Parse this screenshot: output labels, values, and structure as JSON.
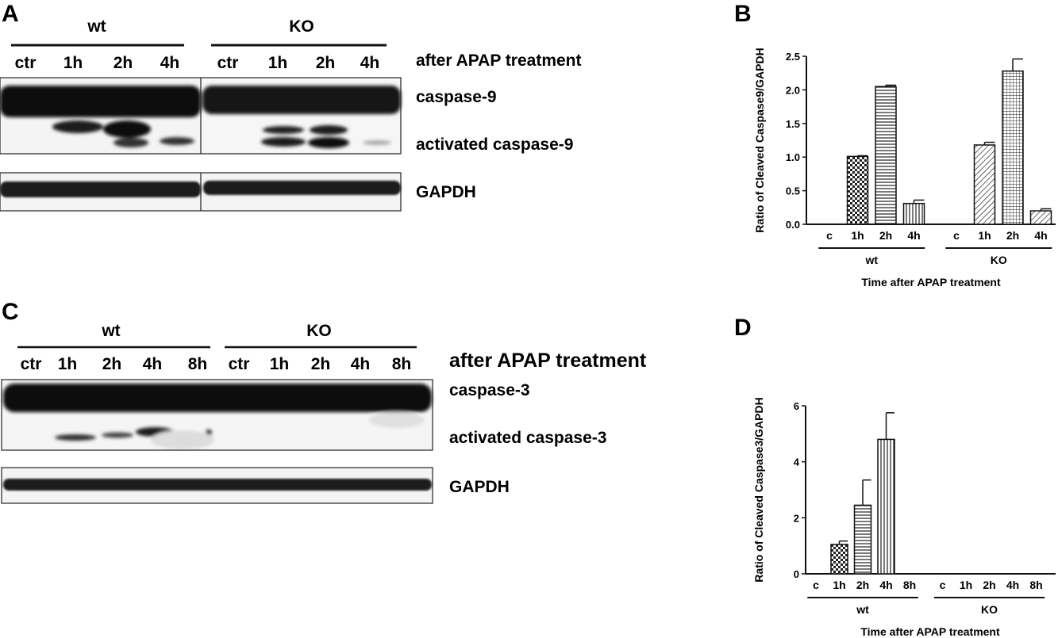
{
  "panel_a": {
    "letter": "A",
    "groups": [
      "wt",
      "KO"
    ],
    "lanes": [
      "ctr",
      "1h",
      "2h",
      "4h",
      "ctr",
      "1h",
      "2h",
      "4h"
    ],
    "treatment_label": "after APAP treatment",
    "band_labels": [
      "caspase-9",
      "activated caspase-9",
      "GAPDH"
    ]
  },
  "panel_c": {
    "letter": "C",
    "groups": [
      "wt",
      "KO"
    ],
    "lanes": [
      "ctr",
      "1h",
      "2h",
      "4h",
      "8h",
      "ctr",
      "1h",
      "2h",
      "4h",
      "8h"
    ],
    "treatment_label": "after APAP treatment",
    "band_labels": [
      "caspase-3",
      "activated caspase-3",
      "GAPDH"
    ]
  },
  "chart_data": [
    {
      "panel": "B",
      "type": "bar",
      "ylabel": "Ratio of Cleaved Caspase9/GAPDH",
      "xlabel": "Time after APAP treatment",
      "categories": [
        "c",
        "1h",
        "2h",
        "4h",
        "c",
        "1h",
        "2h",
        "4h"
      ],
      "groups": [
        {
          "name": "wt",
          "span": [
            0,
            3
          ]
        },
        {
          "name": "KO",
          "span": [
            4,
            7
          ]
        }
      ],
      "values": [
        0,
        1.01,
        2.05,
        0.31,
        0,
        1.18,
        2.28,
        0.2
      ],
      "errors": [
        0,
        0.01,
        0.02,
        0.05,
        0,
        0.04,
        0.18,
        0.03
      ],
      "patterns": [
        "none",
        "check",
        "hlines",
        "vlines",
        "none",
        "diag",
        "grid",
        "diag"
      ],
      "ylim": [
        0,
        2.5
      ],
      "yticks": [
        0.0,
        0.5,
        1.0,
        1.5,
        2.0,
        2.5
      ],
      "ytick_labels": [
        "0.0",
        "0.5",
        "1.0",
        "1.5",
        "2.0",
        "2.5"
      ]
    },
    {
      "panel": "D",
      "type": "bar",
      "ylabel": "Ratio of Cleaved Caspase3/GAPDH",
      "xlabel": "Time after APAP treatment",
      "categories": [
        "c",
        "1h",
        "2h",
        "4h",
        "8h",
        "c",
        "1h",
        "2h",
        "4h",
        "8h"
      ],
      "groups": [
        {
          "name": "wt",
          "span": [
            0,
            4
          ]
        },
        {
          "name": "KO",
          "span": [
            5,
            9
          ]
        }
      ],
      "values": [
        0,
        1.05,
        2.45,
        4.8,
        0,
        0,
        0,
        0,
        0,
        0
      ],
      "errors": [
        0,
        0.12,
        0.9,
        0.95,
        0,
        0,
        0,
        0,
        0,
        0
      ],
      "patterns": [
        "none",
        "check",
        "hlines",
        "vlines",
        "none",
        "none",
        "none",
        "none",
        "none",
        "none"
      ],
      "ylim": [
        0,
        6
      ],
      "yticks": [
        0,
        2,
        4,
        6
      ],
      "ytick_labels": [
        "0",
        "2",
        "4",
        "6"
      ]
    }
  ],
  "panel_b_letter": "B",
  "panel_d_letter": "D"
}
